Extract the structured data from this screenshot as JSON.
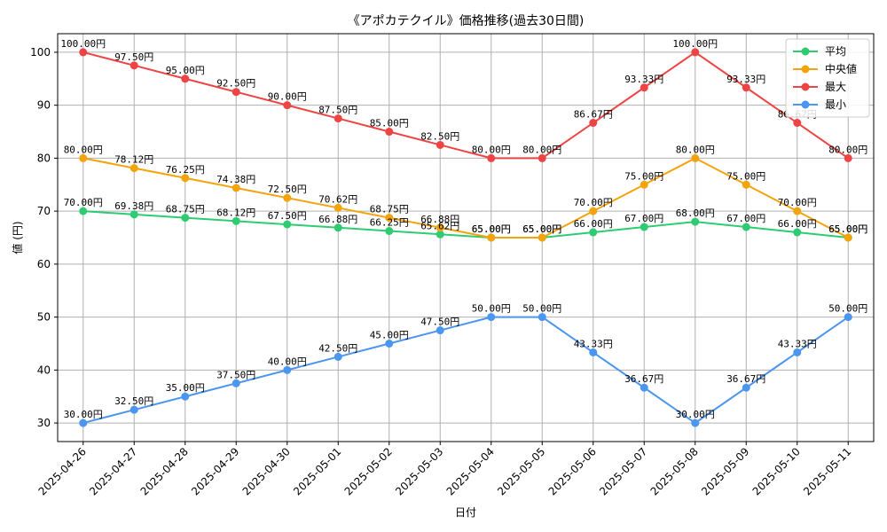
{
  "chart_data": {
    "type": "line",
    "title": "《アポカテクイル》価格推移(過去30日間)",
    "xlabel": "日付",
    "ylabel": "値 (円)",
    "x": [
      "2025-04-26",
      "2025-04-27",
      "2025-04-28",
      "2025-04-29",
      "2025-04-30",
      "2025-05-01",
      "2025-05-02",
      "2025-05-03",
      "2025-05-04",
      "2025-05-05",
      "2025-05-06",
      "2025-05-07",
      "2025-05-08",
      "2025-05-09",
      "2025-05-10",
      "2025-05-11"
    ],
    "ylim": [
      26.5,
      103.5
    ],
    "yticks": [
      30,
      40,
      50,
      60,
      70,
      80,
      90,
      100
    ],
    "grid": true,
    "legend_position": "top-right",
    "series": [
      {
        "name": "平均",
        "color": "#2ecc71",
        "values": [
          70.0,
          69.38,
          68.75,
          68.12,
          67.5,
          66.88,
          66.25,
          65.62,
          65.0,
          65.0,
          66.0,
          67.0,
          68.0,
          67.0,
          66.0,
          65.0
        ],
        "labels": [
          "70.00円",
          "69.38円",
          "68.75円",
          "68.12円",
          "67.50円",
          "66.88円",
          "66.25円",
          "65.62円",
          "65.00円",
          "65.00円",
          "66.00円",
          "67.00円",
          "68.00円",
          "67.00円",
          "66.00円",
          "65.00円"
        ]
      },
      {
        "name": "中央値",
        "color": "#f5a30a",
        "values": [
          80.0,
          78.12,
          76.25,
          74.38,
          72.5,
          70.62,
          68.75,
          66.88,
          65.0,
          65.0,
          70.0,
          75.0,
          80.0,
          75.0,
          70.0,
          65.0
        ],
        "labels": [
          "80.00円",
          "78.12円",
          "76.25円",
          "74.38円",
          "72.50円",
          "70.62円",
          "68.75円",
          "66.88円",
          "65.00円",
          "65.00円",
          "70.00円",
          "75.00円",
          "80.00円",
          "75.00円",
          "70.00円",
          "65.00円"
        ]
      },
      {
        "name": "最大",
        "color": "#ef4444",
        "values": [
          100.0,
          97.5,
          95.0,
          92.5,
          90.0,
          87.5,
          85.0,
          82.5,
          80.0,
          80.0,
          86.67,
          93.33,
          100.0,
          93.33,
          86.67,
          80.0
        ],
        "labels": [
          "100.00円",
          "97.50円",
          "95.00円",
          "92.50円",
          "90.00円",
          "87.50円",
          "85.00円",
          "82.50円",
          "80.00円",
          "80.00円",
          "86.67円",
          "93.33円",
          "100.00円",
          "93.33円",
          "86.67円",
          "80.00円"
        ]
      },
      {
        "name": "最小",
        "color": "#4b96f0",
        "values": [
          30.0,
          32.5,
          35.0,
          37.5,
          40.0,
          42.5,
          45.0,
          47.5,
          50.0,
          50.0,
          43.33,
          36.67,
          30.0,
          36.67,
          43.33,
          50.0
        ],
        "labels": [
          "30.00円",
          "32.50円",
          "35.00円",
          "37.50円",
          "40.00円",
          "42.50円",
          "45.00円",
          "47.50円",
          "50.00円",
          "50.00円",
          "43.33円",
          "36.67円",
          "30.00円",
          "36.67円",
          "43.33円",
          "50.00円"
        ]
      }
    ]
  }
}
